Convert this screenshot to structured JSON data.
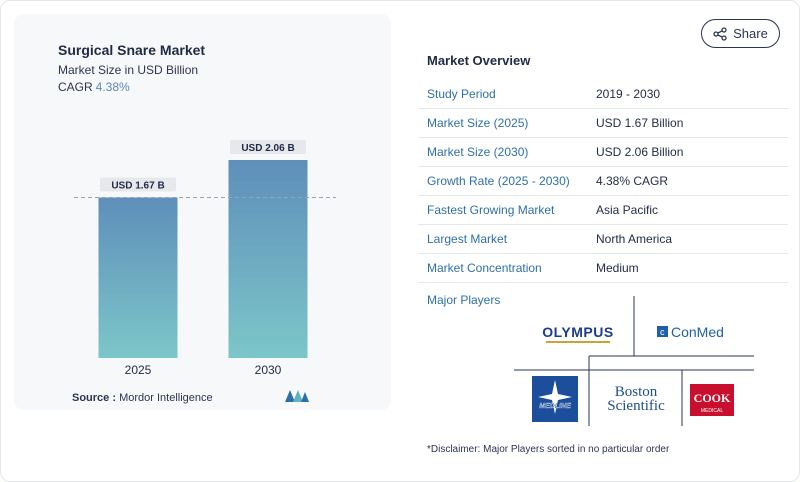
{
  "chart": {
    "title": "Surgical Snare Market",
    "subtitle": "Market Size in USD Billion",
    "cagr_label": "CAGR",
    "cagr_value": "4.38%"
  },
  "chart_data": {
    "type": "bar",
    "categories": [
      "2025",
      "2030"
    ],
    "values": [
      1.67,
      2.06
    ],
    "data_labels": [
      "USD 1.67 B",
      "USD 2.06 B"
    ],
    "title": "Surgical Snare Market",
    "subtitle": "Market Size in USD Billion",
    "xlabel": "",
    "ylabel": "",
    "ylim": [
      0,
      2.2
    ],
    "grid": false,
    "reference_line_at": 1.67,
    "colors": {
      "bar_top": "#5e8fba",
      "bar_bottom": "#7cc6c8"
    }
  },
  "source": {
    "label": "Source :",
    "value": "Mordor Intelligence"
  },
  "share": {
    "label": "Share"
  },
  "overview": {
    "title": "Market Overview",
    "rows": [
      {
        "key": "Study Period",
        "value": "2019 - 2030"
      },
      {
        "key": "Market Size (2025)",
        "value": "USD 1.67 Billion"
      },
      {
        "key": "Market Size (2030)",
        "value": "USD 2.06 Billion"
      },
      {
        "key": "Growth Rate (2025 - 2030)",
        "value": "4.38% CAGR"
      },
      {
        "key": "Fastest Growing Market",
        "value": "Asia Pacific"
      },
      {
        "key": "Largest Market",
        "value": "North America"
      },
      {
        "key": "Market Concentration",
        "value": "Medium"
      }
    ]
  },
  "players": {
    "title": "Major Players",
    "logos": {
      "olympus": "OLYMPUS",
      "conmed": "ConMed",
      "medline": "MEDLINE",
      "boston_1": "Boston",
      "boston_2": "Scientific",
      "cook_1": "COOK",
      "cook_2": "MEDICAL"
    }
  },
  "disclaimer": "*Disclaimer: Major Players sorted in no particular order"
}
